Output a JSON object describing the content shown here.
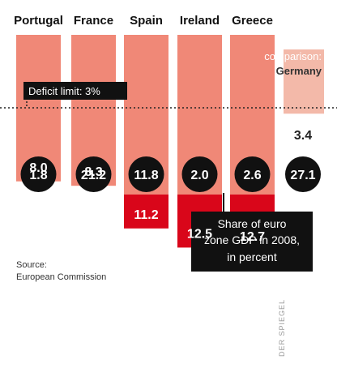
{
  "chart_data": {
    "type": "bar",
    "categories": [
      "Portugal",
      "France",
      "Spain",
      "Ireland",
      "Greece"
    ],
    "series": [
      {
        "values": [
          8.0,
          8.3,
          11.2,
          12.5,
          12.7
        ]
      }
    ],
    "value_labels": [
      "8.0",
      "8.3",
      "11.2",
      "12.5",
      "12.7"
    ],
    "gdp_share_values": [
      1.8,
      21.2,
      11.8,
      2.0,
      2.6
    ],
    "gdp_share_labels": [
      "1.8",
      "21.2",
      "11.8",
      "2.0",
      "2.6"
    ],
    "comparison": {
      "line1": "comparison:",
      "line2": "Germany",
      "deficit_value": 3.4,
      "deficit_label": "3.4",
      "gdp_share_value": 27.1,
      "gdp_share_label": "27.1"
    },
    "deficit_limit": {
      "label": "Deficit limit: 3%",
      "value": 3
    },
    "gdp_share_box": [
      "Share of euro",
      "zone GDP in 2008,",
      "in percent"
    ],
    "source": [
      "Source:",
      "European Commission"
    ],
    "credit": "DER SPIEGEL",
    "colors": {
      "bar_light": "#f08877",
      "bar_dark": "#d9061a",
      "germany_bar": "#f3b9a9",
      "circle": "#111111",
      "dotted_line": "#222222"
    }
  }
}
